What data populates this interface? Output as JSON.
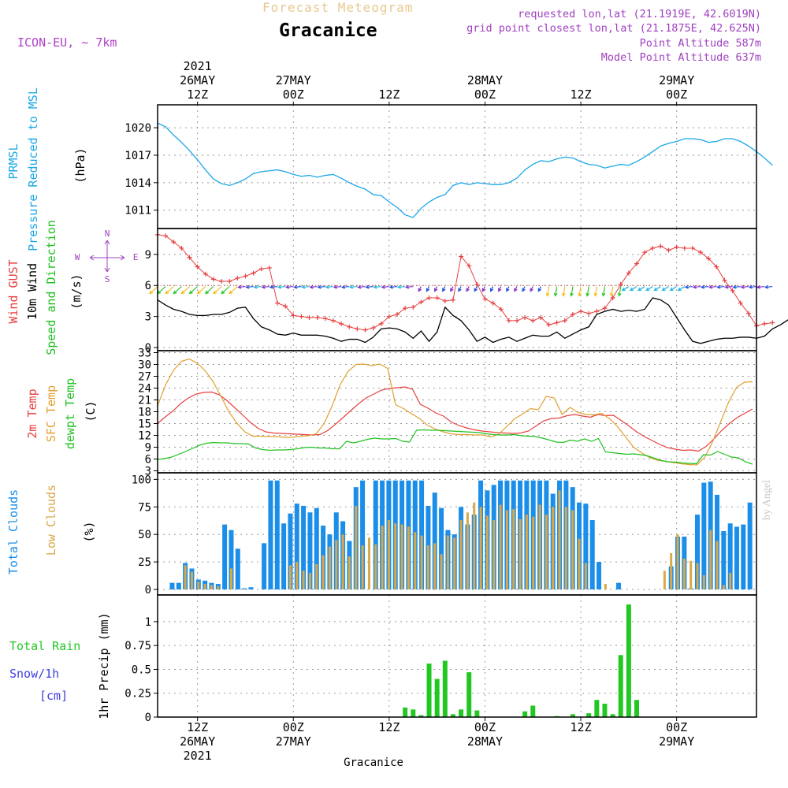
{
  "header": {
    "title": "Forecast Meteogram",
    "station": "Gracanice",
    "model": "ICON-EU, ~ 7km",
    "requested": "requested lon,lat (21.1919E, 42.6019N)",
    "grid_point": "grid point closest lon,lat (21.1875E, 42.625N)",
    "point_altitude": "Point Altitude 587m",
    "model_altitude": "Model Point Altitude 637m"
  },
  "footer": {
    "station": "Gracanice"
  },
  "watermark": "by Angel",
  "colors": {
    "pressure": "#1aa7e8",
    "gust": "#e84040",
    "wind": "#000000",
    "t2m": "#e84040",
    "sfc": "#e0a030",
    "dewpt": "#20c020",
    "total_clouds": "#1a8ee8",
    "low_clouds": "#d9a84a",
    "rain": "#22c822",
    "snow": "#4040e0",
    "label_purple": "#a040c0"
  },
  "time_axis": {
    "top_labels": [
      {
        "t": 12,
        "lines": [
          "2021",
          "26MAY",
          "12Z"
        ]
      },
      {
        "t": 24,
        "lines": [
          "27MAY",
          "00Z"
        ]
      },
      {
        "t": 36,
        "lines": [
          "12Z"
        ]
      },
      {
        "t": 48,
        "lines": [
          "28MAY",
          "00Z"
        ]
      },
      {
        "t": 60,
        "lines": [
          "12Z"
        ]
      },
      {
        "t": 72,
        "lines": [
          "29MAY",
          "00Z"
        ]
      }
    ],
    "bottom_labels": [
      {
        "t": 12,
        "lines": [
          "12Z",
          "26MAY",
          "2021"
        ]
      },
      {
        "t": 24,
        "lines": [
          "00Z",
          "27MAY"
        ]
      },
      {
        "t": 36,
        "lines": [
          "12Z"
        ]
      },
      {
        "t": 48,
        "lines": [
          "00Z",
          "28MAY"
        ]
      },
      {
        "t": 60,
        "lines": [
          "12Z"
        ]
      },
      {
        "t": 72,
        "lines": [
          "00Z",
          "29MAY"
        ]
      }
    ]
  },
  "compass": {
    "n": "N",
    "s": "S",
    "w": "W",
    "e": "E"
  },
  "chart_data": [
    {
      "type": "line",
      "title": "",
      "ylabel_lines": [
        "PRMSL",
        "Pressure Reduced to MSL",
        "(hPa)"
      ],
      "y_ticks": [
        1011,
        1014,
        1017,
        1020
      ],
      "ylim": [
        1009,
        1022.5
      ],
      "x_start_hours": 7,
      "series": [
        {
          "name": "PRMSL",
          "values": [
            1020.5,
            1020.1,
            1019.2,
            1018.4,
            1017.5,
            1016.5,
            1015.4,
            1014.4,
            1013.9,
            1013.7,
            1014.0,
            1014.4,
            1015.0,
            1015.2,
            1015.3,
            1015.4,
            1015.2,
            1014.9,
            1014.7,
            1014.8,
            1014.6,
            1014.8,
            1014.9,
            1014.5,
            1014.0,
            1013.6,
            1013.3,
            1012.7,
            1012.6,
            1011.9,
            1011.3,
            1010.5,
            1010.2,
            1011.2,
            1011.9,
            1012.4,
            1012.7,
            1013.7,
            1014.0,
            1013.8,
            1014.0,
            1013.9,
            1013.8,
            1013.8,
            1014.0,
            1014.5,
            1015.4,
            1016.0,
            1016.4,
            1016.3,
            1016.6,
            1016.8,
            1016.7,
            1016.3,
            1016.0,
            1015.9,
            1015.6,
            1015.8,
            1016.0,
            1015.9,
            1016.3,
            1016.8,
            1017.4,
            1018.0,
            1018.3,
            1018.5,
            1018.8,
            1018.8,
            1018.7,
            1018.4,
            1018.5,
            1018.8,
            1018.8,
            1018.5,
            1018.0,
            1017.4,
            1016.7,
            1015.9
          ]
        }
      ]
    },
    {
      "type": "line",
      "title": "",
      "ylabel_lines": [
        "Wind GUST",
        "10m Wind",
        "Speed and Direction",
        "(m/s)"
      ],
      "y_ticks": [
        0,
        3,
        6,
        9
      ],
      "ylim": [
        -0.3,
        11.5
      ],
      "x_start_hours": 7,
      "series": [
        {
          "name": "Wind GUST",
          "values": [
            10.9,
            10.8,
            10.2,
            9.6,
            8.7,
            7.8,
            7.1,
            6.6,
            6.4,
            6.4,
            6.7,
            6.9,
            7.2,
            7.6,
            7.7,
            4.3,
            4.0,
            3.1,
            3.0,
            2.9,
            2.9,
            2.8,
            2.6,
            2.3,
            2.0,
            1.8,
            1.7,
            1.9,
            2.3,
            3.0,
            3.2,
            3.8,
            3.9,
            4.4,
            4.8,
            4.8,
            4.5,
            4.6,
            8.8,
            7.9,
            6.1,
            4.7,
            4.3,
            3.7,
            2.6,
            2.6,
            2.9,
            2.6,
            2.9,
            2.2,
            2.4,
            2.6,
            3.2,
            3.5,
            3.3,
            3.5,
            3.8,
            4.8,
            6.1,
            7.2,
            8.1,
            9.2,
            9.6,
            9.8,
            9.4,
            9.7,
            9.6,
            9.6,
            9.2,
            8.6,
            7.8,
            6.5,
            5.5,
            4.3,
            3.3,
            2.1,
            2.3,
            2.4
          ]
        },
        {
          "name": "10m Wind",
          "values": [
            4.6,
            4.1,
            3.7,
            3.5,
            3.2,
            3.1,
            3.1,
            3.2,
            3.2,
            3.4,
            3.8,
            3.9,
            2.8,
            2.0,
            1.7,
            1.3,
            1.2,
            1.4,
            1.2,
            1.2,
            1.2,
            1.1,
            0.9,
            0.6,
            0.8,
            0.8,
            0.5,
            1.0,
            1.8,
            1.9,
            1.8,
            1.5,
            0.9,
            1.6,
            0.6,
            1.5,
            3.9,
            3.1,
            2.6,
            1.7,
            0.6,
            1.0,
            0.5,
            0.8,
            1.0,
            0.6,
            0.9,
            1.2,
            1.1,
            1.1,
            1.5,
            0.9,
            1.3,
            1.7,
            2.0,
            3.2,
            3.5,
            3.7,
            3.5,
            3.6,
            3.5,
            3.7,
            4.8,
            4.6,
            4.1,
            2.9,
            1.7,
            0.6,
            0.4,
            0.6,
            0.8,
            0.9,
            0.9,
            1.0,
            1.0,
            0.9,
            1.1,
            1.8,
            2.2,
            2.7
          ]
        }
      ]
    },
    {
      "type": "line",
      "title": "",
      "ylabel_lines": [
        "2m Temp",
        "SFC Temp",
        "dewpt Temp",
        "(C)"
      ],
      "y_ticks": [
        3,
        6,
        9,
        12,
        15,
        18,
        21,
        24,
        27,
        30,
        33
      ],
      "ylim": [
        2.5,
        33.5
      ],
      "x_start_hours": 7,
      "series": [
        {
          "name": "2m Temp",
          "values": [
            15.0,
            16.7,
            18.2,
            20.1,
            21.5,
            22.5,
            22.9,
            23.0,
            22.3,
            20.8,
            19.0,
            17.2,
            15.3,
            13.8,
            12.9,
            12.6,
            12.5,
            12.4,
            12.3,
            12.2,
            12.1,
            12.2,
            13.2,
            14.8,
            16.5,
            18.3,
            20.0,
            21.5,
            22.5,
            23.5,
            23.9,
            24.1,
            24.3,
            23.7,
            19.9,
            18.9,
            17.7,
            16.9,
            15.4,
            14.5,
            13.9,
            13.4,
            13.1,
            12.9,
            12.7,
            12.6,
            12.5,
            12.6,
            13.1,
            14.4,
            15.7,
            16.3,
            16.4,
            17.0,
            17.3,
            16.9,
            16.6,
            17.3,
            17.0,
            17.1,
            15.8,
            14.4,
            12.9,
            11.7,
            10.7,
            9.7,
            8.9,
            8.5,
            8.2,
            8.3,
            8.0,
            9.2,
            11.1,
            13.2,
            15.0,
            16.5,
            17.6,
            18.7
          ]
        },
        {
          "name": "SFC Temp",
          "values": [
            19.5,
            24.8,
            28.5,
            30.8,
            31.4,
            30.3,
            28.4,
            25.6,
            21.9,
            17.9,
            15.1,
            12.9,
            11.8,
            11.8,
            11.7,
            11.7,
            11.5,
            11.5,
            11.8,
            11.9,
            12.4,
            15.0,
            19.5,
            24.8,
            28.2,
            30.0,
            30.1,
            29.7,
            30.1,
            29.0,
            19.8,
            18.8,
            17.5,
            16.3,
            14.6,
            13.6,
            12.9,
            12.4,
            12.2,
            12.2,
            12.1,
            12.1,
            11.6,
            12.3,
            14.2,
            16.2,
            17.4,
            18.8,
            18.5,
            21.9,
            21.5,
            17.3,
            19.1,
            17.8,
            17.3,
            17.2,
            17.6,
            16.2,
            14.2,
            11.6,
            9.0,
            7.6,
            6.4,
            5.7,
            5.4,
            5.1,
            4.8,
            4.6,
            4.5,
            6.5,
            10.5,
            15.5,
            20.5,
            24.2,
            25.5,
            25.6
          ]
        },
        {
          "name": "dewpt Temp",
          "values": [
            5.9,
            6.1,
            6.5,
            7.2,
            7.9,
            8.7,
            9.5,
            10.0,
            10.2,
            10.1,
            10.1,
            9.9,
            9.9,
            9.8,
            8.8,
            8.4,
            8.2,
            8.3,
            8.3,
            8.4,
            8.6,
            8.9,
            9.0,
            8.8,
            8.8,
            8.6,
            8.6,
            10.5,
            10.1,
            10.5,
            11.0,
            11.3,
            11.1,
            11.1,
            11.2,
            10.5,
            10.3,
            13.3,
            13.4,
            13.3,
            13.3,
            13.2,
            13.1,
            13.0,
            12.9,
            12.8,
            12.7,
            12.4,
            12.2,
            12.1,
            12.1,
            12.2,
            11.9,
            11.8,
            11.7,
            11.3,
            10.8,
            10.3,
            10.2,
            10.8,
            10.5,
            11.1,
            10.5,
            11.2,
            7.8,
            7.6,
            7.4,
            7.2,
            7.3,
            7.1,
            6.8,
            6.2,
            5.6,
            5.3,
            5.2,
            5.0,
            4.9,
            4.8,
            7.1,
            7.0,
            7.9,
            7.2,
            6.5,
            6.3,
            5.3,
            4.7
          ]
        }
      ]
    },
    {
      "type": "bar",
      "title": "",
      "ylabel_lines": [
        "Total Clouds",
        "Low Clouds",
        "(%)"
      ],
      "y_ticks": [
        0,
        25,
        50,
        75,
        100
      ],
      "ylim": [
        -5,
        106
      ],
      "x_start_hours": 8,
      "series": [
        {
          "name": "Total Clouds",
          "values": [
            0,
            6,
            6,
            24,
            19,
            9,
            8,
            6,
            5,
            59,
            54,
            37,
            1,
            2,
            0,
            42,
            99,
            99,
            60,
            69,
            78,
            76,
            70,
            74,
            58,
            50,
            70,
            62,
            44,
            93,
            99,
            0,
            99,
            99,
            99,
            99,
            99,
            99,
            99,
            99,
            76,
            88,
            74,
            54,
            50,
            75,
            59,
            68,
            99,
            90,
            95,
            99,
            99,
            99,
            99,
            99,
            99,
            99,
            99,
            87,
            99,
            99,
            93,
            79,
            78,
            63,
            25,
            0,
            0,
            6,
            0,
            0,
            0,
            0,
            0,
            0,
            0,
            21,
            48,
            48,
            1,
            68,
            97,
            98,
            86,
            53,
            60,
            57,
            59,
            79
          ]
        },
        {
          "name": "Low Clouds",
          "values": [
            0,
            0,
            0,
            22,
            16,
            7,
            5,
            4,
            3,
            0,
            19,
            0,
            0,
            0,
            0,
            0,
            0,
            0,
            0,
            22,
            25,
            17,
            15,
            23,
            31,
            39,
            45,
            50,
            30,
            76,
            40,
            47,
            41,
            58,
            63,
            60,
            59,
            57,
            52,
            49,
            40,
            42,
            32,
            49,
            47,
            63,
            70,
            79,
            75,
            67,
            63,
            77,
            72,
            73,
            64,
            68,
            66,
            77,
            68,
            75,
            90,
            75,
            72,
            46,
            24,
            0,
            0,
            5,
            0,
            0,
            0,
            0,
            0,
            0,
            0,
            0,
            17,
            33,
            50,
            28,
            26,
            24,
            13,
            54,
            44,
            4,
            15
          ]
        }
      ]
    },
    {
      "type": "bar",
      "title": "",
      "ylabel_lines": [
        "1hr Precip (mm)"
      ],
      "legend_lines": [
        "Total  Rain",
        "Snow/1h",
        "[cm]"
      ],
      "y_ticks": [
        0,
        0.25,
        0.5,
        0.75,
        1
      ],
      "ylim": [
        0,
        1.28
      ],
      "x_start_hours": 8,
      "series": [
        {
          "name": "Total Rain",
          "values": [
            0,
            0,
            0,
            0,
            0,
            0,
            0,
            0,
            0,
            0,
            0,
            0,
            0,
            0,
            0,
            0,
            0,
            0,
            0,
            0,
            0,
            0,
            0,
            0,
            0,
            0,
            0,
            0,
            0,
            0,
            0.1,
            0.08,
            0.02,
            0.56,
            0.4,
            0.59,
            0.03,
            0.08,
            0.47,
            0.07,
            0,
            0,
            0,
            0,
            0,
            0.06,
            0.12,
            0,
            0,
            0.01,
            0,
            0.03,
            0,
            0.04,
            0.18,
            0.14,
            0.03,
            0.65,
            1.18,
            0.18,
            0,
            0,
            0,
            0,
            0,
            0,
            0,
            0,
            0,
            0,
            0,
            0,
            0,
            0,
            0,
            0,
            0,
            0,
            0
          ]
        },
        {
          "name": "Snow/1h",
          "values": [
            0,
            0,
            0,
            0,
            0,
            0,
            0,
            0,
            0,
            0,
            0,
            0,
            0,
            0,
            0,
            0,
            0,
            0,
            0,
            0,
            0,
            0,
            0,
            0,
            0,
            0,
            0,
            0,
            0,
            0,
            0,
            0,
            0,
            0,
            0,
            0,
            0,
            0,
            0,
            0,
            0,
            0,
            0,
            0,
            0,
            0,
            0,
            0,
            0,
            0,
            0,
            0,
            0,
            0,
            0,
            0,
            0,
            0,
            0,
            0,
            0,
            0,
            0,
            0,
            0,
            0,
            0,
            0,
            0,
            0,
            0,
            0,
            0,
            0,
            0,
            0,
            0,
            0,
            0
          ]
        }
      ]
    },
    {
      "type": "wind_barbs",
      "title": "",
      "direction_key": [
        "N",
        "E",
        "S",
        "W"
      ],
      "arrow_colors": [
        "#f0c020",
        "#28c828",
        "#20b8d8",
        "#2050e0",
        "#8030d0"
      ]
    }
  ]
}
